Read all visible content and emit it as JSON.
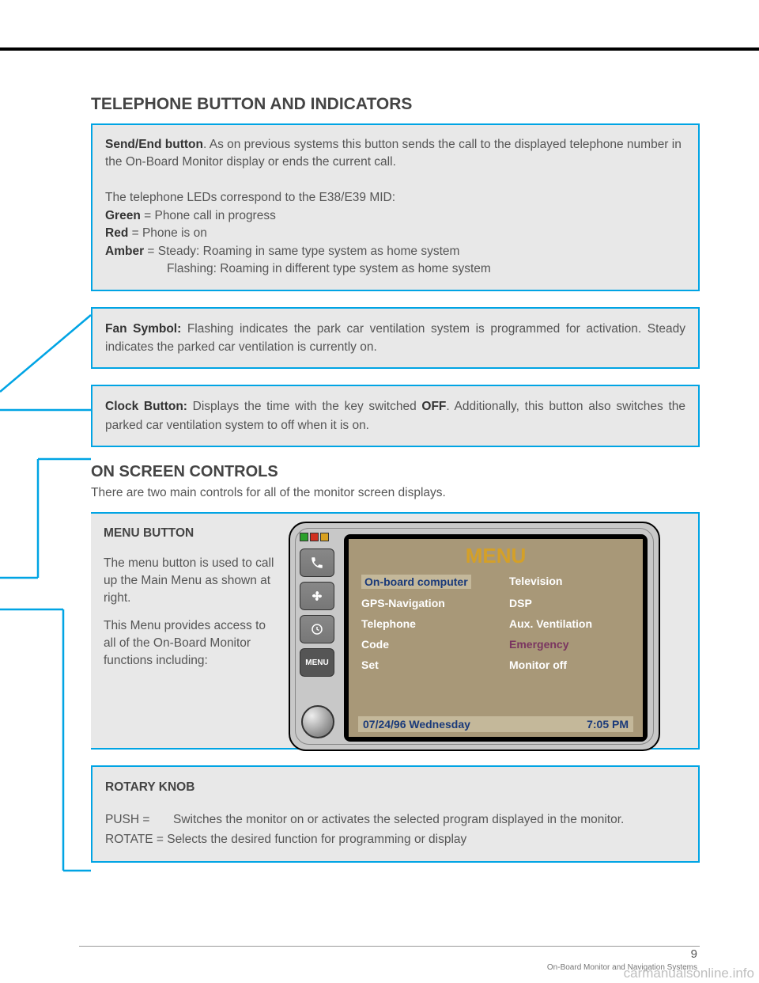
{
  "heading1": "TELEPHONE BUTTON AND INDICATORS",
  "box1": {
    "l1a": "Send/End button",
    "l1b": ".  As on previous systems this button sends the call to the displayed telephone number in the On-Board Monitor display or ends the current call.",
    "l2": "The telephone LEDs correspond to the E38/E39 MID:",
    "greenLabel": "Green",
    "greenText": " = Phone call in progress",
    "redLabel": "Red",
    "redText": " = Phone is on",
    "amberLabel": "Amber",
    "amberText1": " =  Steady: Roaming in same type system as home system",
    "amberText2": "Flashing: Roaming in different type system as home system"
  },
  "box2": {
    "label": "Fan Symbol:",
    "text": " Flashing indicates the park car ventilation system is programmed for activation.  Steady indicates the parked car ventilation is currently on."
  },
  "box3": {
    "label": "Clock Button:",
    "text1": " Displays the time with the key switched ",
    "off": "OFF",
    "text2": ".  Additionally, this button also switches the parked car ventilation system to off when it is on."
  },
  "heading2": "ON SCREEN CONTROLS",
  "heading2sub": "There are two main controls for all of the monitor screen displays.",
  "menuBox": {
    "title": "MENU BUTTON",
    "p1": "The menu button is used to call up the Main Menu as shown at right.",
    "p2": "This Menu provides access to all of the On-Board Monitor functions including:"
  },
  "device": {
    "ledColors": [
      "#2aa02a",
      "#d03020",
      "#d8a020"
    ],
    "menuBtnLabel": "MENU",
    "screen": {
      "title": "MENU",
      "items": [
        {
          "l": "On-board computer",
          "r": "Television",
          "selected": true
        },
        {
          "l": "GPS-Navigation",
          "r": "DSP"
        },
        {
          "l": "Telephone",
          "r": "Aux. Ventilation"
        },
        {
          "l": "Code",
          "r": "Emergency",
          "emergency": true
        },
        {
          "l": "Set",
          "r": "Monitor off"
        }
      ],
      "footerLeft": "07/24/96  Wednesday",
      "footerRight": "7:05 PM"
    }
  },
  "rotary": {
    "title": "ROTARY KNOB",
    "pushLabel": "PUSH =",
    "pushText": "Switches the monitor on or activates the selected program displayed in the monitor.",
    "rotateLabel": "ROTATE =",
    "rotateText": " Selects the desired function for programming or display"
  },
  "pageNum": "9",
  "footerText": "On-Board Monitor and Navigation Systems",
  "watermark": "carmanualsonline.info",
  "colors": {
    "accent": "#00a4e4",
    "boxBg": "#e8e8e8",
    "screenBg": "#a89878",
    "screenTitle": "#d4a028",
    "selectedBg": "#c4b89a",
    "selectedFg": "#1a3a7a",
    "emergencyColor": "#7a3560"
  }
}
